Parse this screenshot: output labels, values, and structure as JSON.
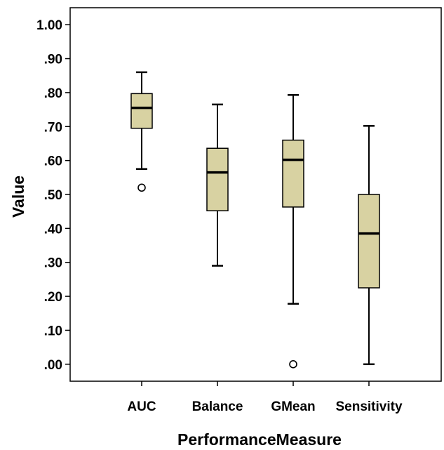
{
  "chart_data": {
    "type": "boxplot",
    "title": "",
    "xlabel": "PerformanceMeasure",
    "ylabel": "Value",
    "ylim": [
      -0.05,
      1.05
    ],
    "yticks": [
      {
        "value": 1.0,
        "label": "1.00"
      },
      {
        "value": 0.9,
        "label": ".90"
      },
      {
        "value": 0.8,
        "label": ".80"
      },
      {
        "value": 0.7,
        "label": ".70"
      },
      {
        "value": 0.6,
        "label": ".60"
      },
      {
        "value": 0.5,
        "label": ".50"
      },
      {
        "value": 0.4,
        "label": ".40"
      },
      {
        "value": 0.3,
        "label": ".30"
      },
      {
        "value": 0.2,
        "label": ".20"
      },
      {
        "value": 0.1,
        "label": ".10"
      },
      {
        "value": 0.0,
        "label": ".00"
      }
    ],
    "categories": [
      "AUC",
      "Balance",
      "GMean",
      "Sensitivity"
    ],
    "boxes": [
      {
        "category": "AUC",
        "min": 0.575,
        "q1": 0.695,
        "median": 0.755,
        "q3": 0.797,
        "max": 0.86,
        "outliers": [
          0.52
        ]
      },
      {
        "category": "Balance",
        "min": 0.29,
        "q1": 0.452,
        "median": 0.565,
        "q3": 0.636,
        "max": 0.765,
        "outliers": []
      },
      {
        "category": "GMean",
        "min": 0.178,
        "q1": 0.463,
        "median": 0.602,
        "q3": 0.66,
        "max": 0.793,
        "outliers": [
          0.0
        ]
      },
      {
        "category": "Sensitivity",
        "min": 0.0,
        "q1": 0.225,
        "median": 0.385,
        "q3": 0.5,
        "max": 0.702,
        "outliers": []
      }
    ],
    "grid": false,
    "colors": {
      "box_fill": "#d8d2a2",
      "line": "#000000",
      "background": "#ffffff"
    }
  }
}
